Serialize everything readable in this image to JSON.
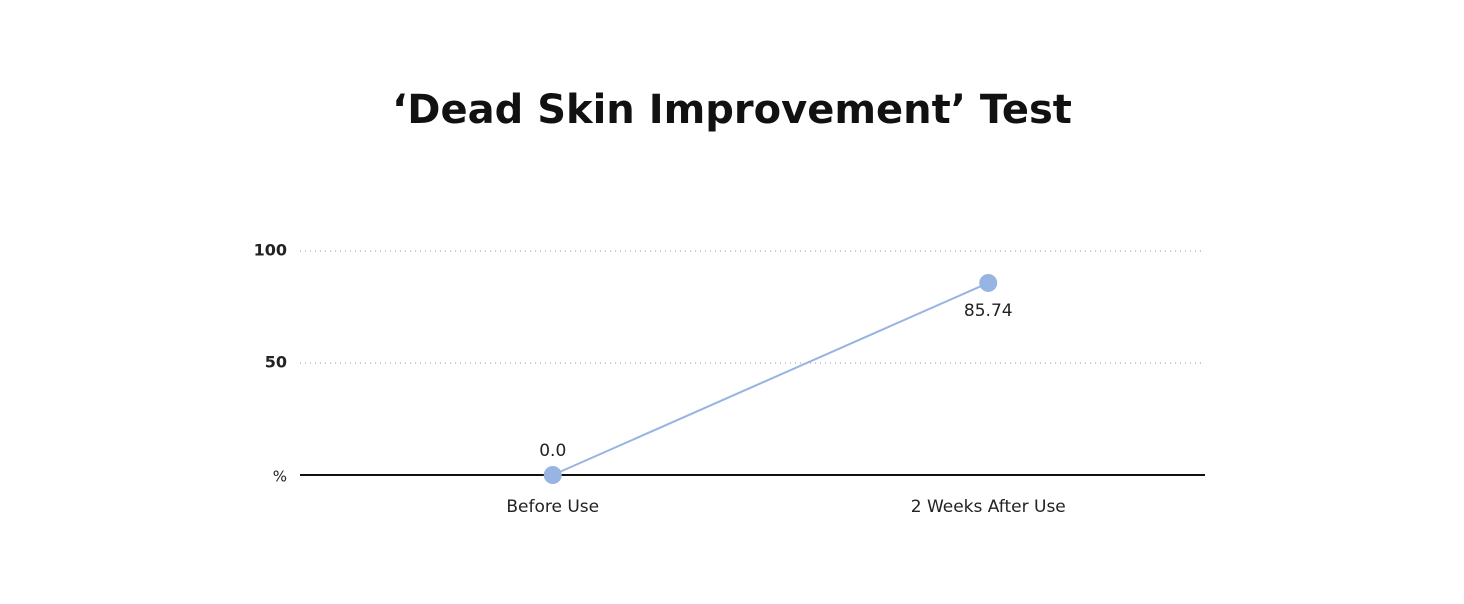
{
  "chart_data": {
    "type": "line",
    "title": "‘Dead Skin Improvement’ Test",
    "categories": [
      "Before Use",
      "2 Weeks After Use"
    ],
    "values": [
      0,
      85.74
    ],
    "value_labels": [
      "0.0",
      "85.74"
    ],
    "color": "#98b4e3",
    "ylim": [
      0,
      100
    ],
    "yticks": [
      {
        "value": 0,
        "label": "%"
      },
      50,
      100
    ],
    "grid": true
  }
}
